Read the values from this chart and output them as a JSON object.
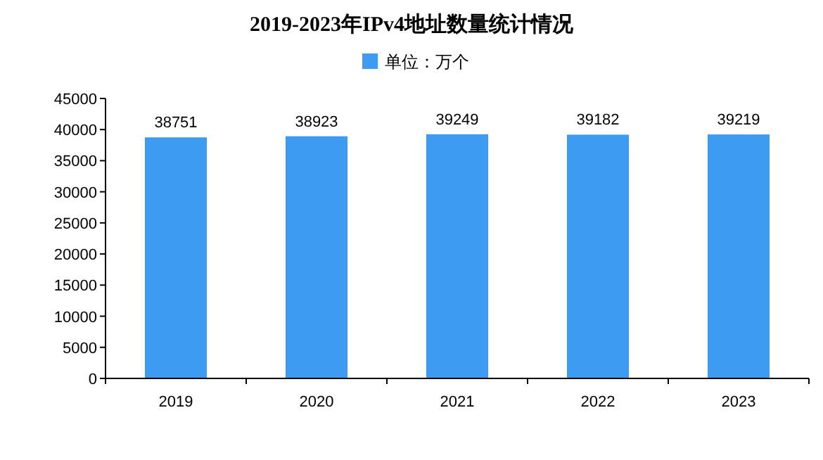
{
  "chart_data": {
    "type": "bar",
    "title": "2019-2023年IPv4地址数量统计情况",
    "categories": [
      "2019",
      "2020",
      "2021",
      "2022",
      "2023"
    ],
    "series": [
      {
        "name": "单位：万个",
        "color": "#3d9cf2",
        "values": [
          38751,
          38923,
          39249,
          39182,
          39219
        ]
      }
    ],
    "ylim": [
      0,
      45000
    ],
    "yticks": [
      0,
      5000,
      10000,
      15000,
      20000,
      25000,
      30000,
      35000,
      40000,
      45000
    ],
    "data_labels": true,
    "legend": "top",
    "grid": false
  }
}
